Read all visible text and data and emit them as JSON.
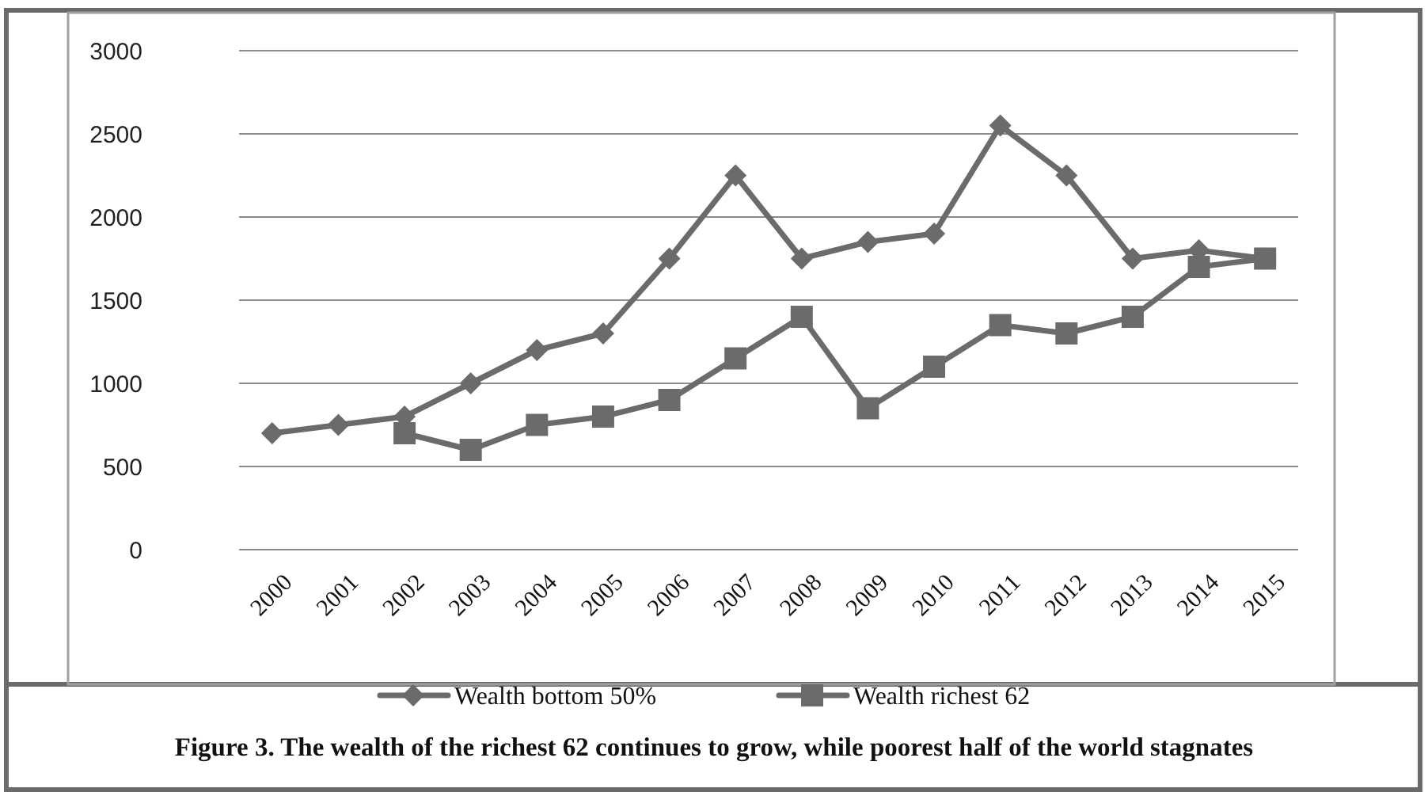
{
  "chart_data": {
    "type": "line",
    "title": "Figure 3. The wealth of the richest 62 continues to grow, while poorest half of the world stagnates",
    "categories": [
      "2000",
      "2001",
      "2002",
      "2003",
      "2004",
      "2005",
      "2006",
      "2007",
      "2008",
      "2009",
      "2010",
      "2011",
      "2012",
      "2013",
      "2014",
      "2015"
    ],
    "series": [
      {
        "name": "Wealth bottom 50%",
        "color": "#6b6b6b",
        "marker": "diamond",
        "values": [
          700,
          750,
          800,
          1000,
          1200,
          1300,
          1750,
          2250,
          1750,
          1850,
          1900,
          2550,
          2250,
          1750,
          1800,
          1750
        ]
      },
      {
        "name": "Wealth richest 62",
        "color": "#6b6b6b",
        "marker": "square",
        "values": [
          null,
          null,
          700,
          600,
          750,
          800,
          900,
          1150,
          1400,
          850,
          1100,
          1350,
          1300,
          1400,
          1700,
          1750
        ]
      }
    ],
    "ylim": [
      0,
      3000
    ],
    "yticks": [
      0,
      500,
      1000,
      1500,
      2000,
      2500,
      3000
    ],
    "grid": "y",
    "legend": "bottom",
    "line_style": "solid"
  }
}
